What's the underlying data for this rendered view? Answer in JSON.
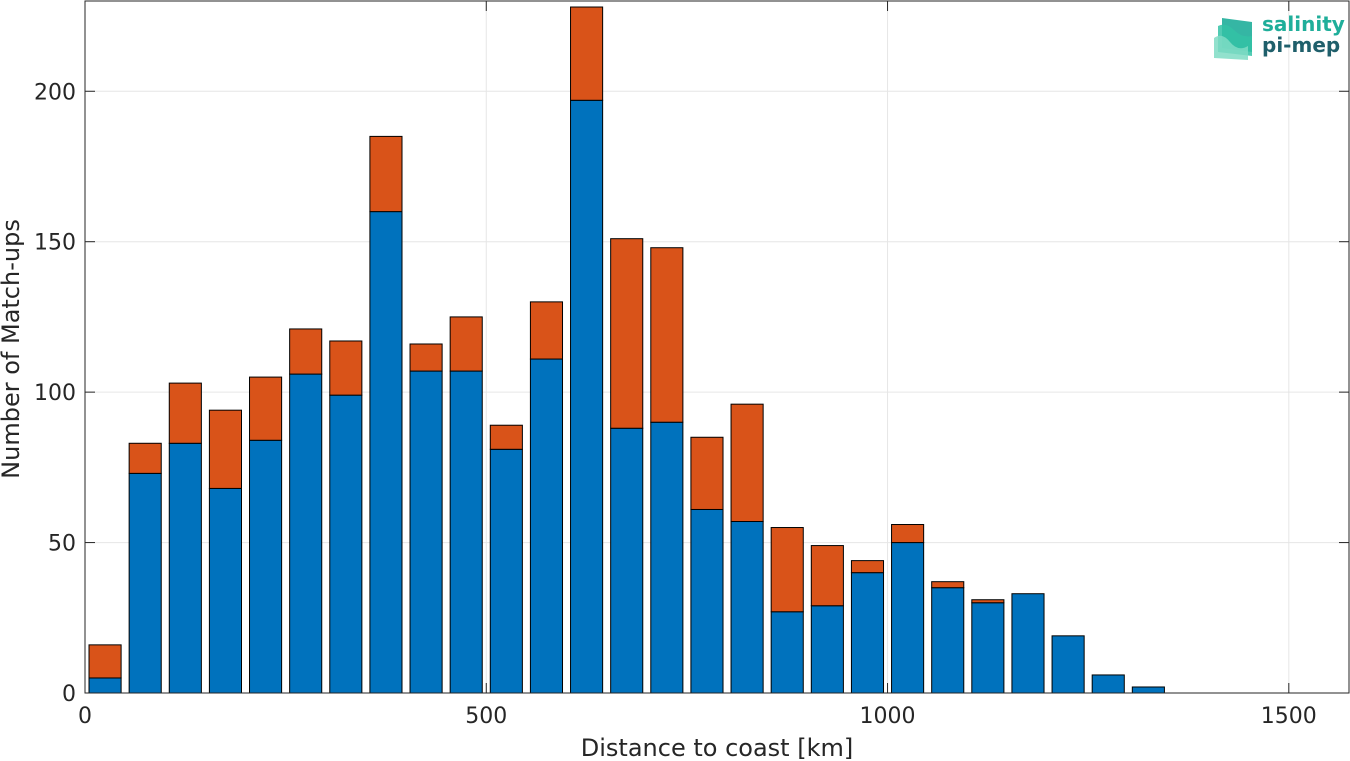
{
  "logo": {
    "line1": "salinity",
    "line2": "pi-mep"
  },
  "colors": {
    "series1": "#0072bd",
    "series2": "#d95319",
    "grid": "#e6e6e6",
    "axis": "#262626"
  },
  "chart_data": {
    "type": "bar",
    "stacked": true,
    "title": "",
    "xlabel": "Distance to coast [km]",
    "ylabel": "Number of Match-ups",
    "xlim": [
      0,
      1575
    ],
    "ylim": [
      0,
      230
    ],
    "xticks": [
      0,
      500,
      1000,
      1500
    ],
    "yticks": [
      0,
      50,
      100,
      150,
      200
    ],
    "grid": true,
    "bin_width": 50,
    "x": [
      25,
      75,
      125,
      175,
      225,
      275,
      325,
      375,
      425,
      475,
      525,
      575,
      625,
      675,
      725,
      775,
      825,
      875,
      925,
      975,
      1025,
      1075,
      1125,
      1175,
      1225,
      1275,
      1325,
      1375,
      1425,
      1475,
      1525
    ],
    "series": [
      {
        "color": "#0072bd",
        "values": [
          5,
          73,
          83,
          68,
          84,
          106,
          99,
          160,
          107,
          107,
          81,
          111,
          197,
          88,
          90,
          61,
          57,
          27,
          29,
          40,
          50,
          35,
          30,
          33,
          19,
          6,
          2,
          0,
          0,
          0,
          0
        ]
      },
      {
        "color": "#d95319",
        "values": [
          11,
          10,
          20,
          26,
          21,
          15,
          18,
          25,
          9,
          18,
          8,
          19,
          31,
          63,
          58,
          24,
          39,
          28,
          20,
          4,
          6,
          2,
          1,
          0,
          0,
          0,
          0,
          0,
          0,
          0,
          0
        ]
      }
    ]
  }
}
